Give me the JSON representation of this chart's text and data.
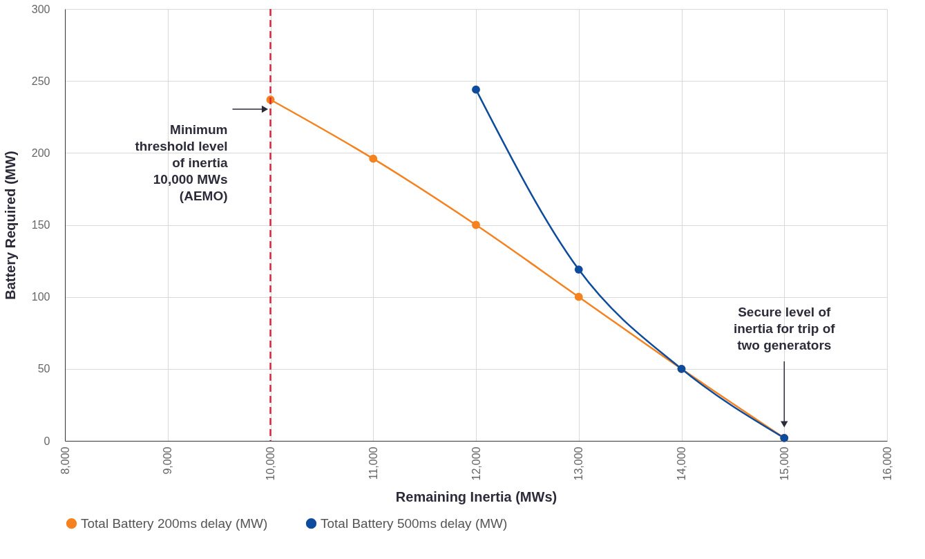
{
  "chart_data": {
    "type": "line",
    "xlabel": "Remaining Inertia (MWs)",
    "ylabel": "Battery Required (MW)",
    "series": [
      {
        "name": "Total Battery 200ms delay (MW)",
        "color": "#f5821f",
        "x": [
          10000,
          11000,
          12000,
          13000,
          14000,
          15000
        ],
        "values": [
          237,
          196,
          150,
          100,
          50,
          2
        ]
      },
      {
        "name": "Total Battery 500ms delay (MW)",
        "color": "#0d4c9c",
        "x": [
          12000,
          13000,
          14000,
          15000
        ],
        "values": [
          244,
          119,
          50,
          2
        ]
      }
    ],
    "xlim": [
      8000,
      16000
    ],
    "xticks": [
      {
        "value": 8000,
        "label": "8,000"
      },
      {
        "value": 9000,
        "label": "9,000"
      },
      {
        "value": 10000,
        "label": "10,000"
      },
      {
        "value": 11000,
        "label": "11,000"
      },
      {
        "value": 12000,
        "label": "12,000"
      },
      {
        "value": 13000,
        "label": "13,000"
      },
      {
        "value": 14000,
        "label": "14,000"
      },
      {
        "value": 15000,
        "label": "15,000"
      },
      {
        "value": 16000,
        "label": "16,000"
      }
    ],
    "ylim": [
      0,
      300
    ],
    "yticks": [
      0,
      50,
      100,
      150,
      200,
      250,
      300
    ],
    "ref_lines": [
      {
        "axis": "x",
        "value": 10000,
        "label": "Minimum\nthreshold level\nof inertia\n10,000 MWs\n(AEMO)",
        "color": "#e0243c",
        "line_style": "dashed"
      }
    ],
    "annotations": [
      "Secure level of\ninertia for trip of\ntwo generators"
    ],
    "grid": true,
    "legend": "bottom",
    "marker": "circle",
    "line_style": "solid"
  }
}
